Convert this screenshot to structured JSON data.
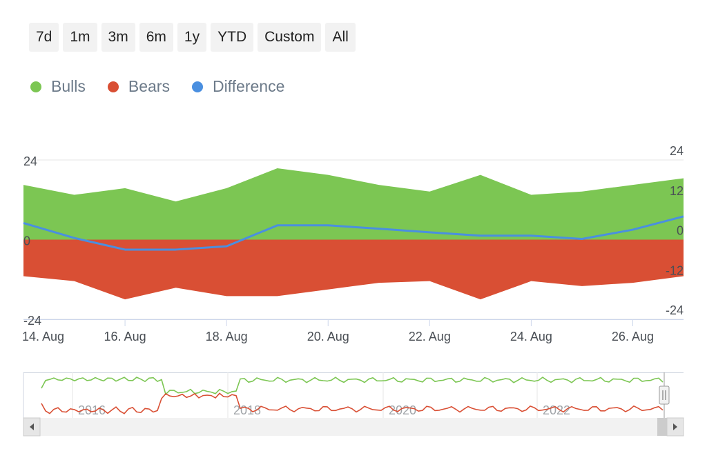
{
  "range_selector": {
    "buttons": [
      "7d",
      "1m",
      "3m",
      "6m",
      "1y",
      "YTD",
      "Custom",
      "All"
    ]
  },
  "legend": [
    {
      "label": "Bulls",
      "color": "#7cc653"
    },
    {
      "label": "Bears",
      "color": "#d94f34"
    },
    {
      "label": "Difference",
      "color": "#4a8fe0"
    }
  ],
  "chart_data": {
    "type": "area",
    "x": [
      "14. Aug",
      "15. Aug",
      "16. Aug",
      "17. Aug",
      "18. Aug",
      "19. Aug",
      "20. Aug",
      "21. Aug",
      "22. Aug",
      "23. Aug",
      "24. Aug",
      "25. Aug",
      "26. Aug",
      "27. Aug"
    ],
    "x_tick_labels": [
      "14. Aug",
      "16. Aug",
      "18. Aug",
      "20. Aug",
      "22. Aug",
      "24. Aug",
      "26. Aug"
    ],
    "series": [
      {
        "name": "Bulls",
        "type": "area",
        "color": "#7cc653",
        "values": [
          16.5,
          13.5,
          15.5,
          11.5,
          15.5,
          21.5,
          19.5,
          16.5,
          14.5,
          19.5,
          13.5,
          14.5,
          16.5,
          18.5
        ]
      },
      {
        "name": "Bears",
        "type": "area",
        "color": "#d94f34",
        "values": [
          -11,
          -12.5,
          -18,
          -14.5,
          -17,
          -17,
          -15,
          -13,
          -12.5,
          -18,
          -12.5,
          -14,
          -13,
          -11
        ]
      },
      {
        "name": "Difference",
        "type": "line",
        "color": "#4a8fe0",
        "values": [
          5,
          0.5,
          -3,
          -3,
          -2,
          4.3,
          4.3,
          3.3,
          2.2,
          1.2,
          1.2,
          0.2,
          3,
          7
        ]
      }
    ],
    "y_left": {
      "ticks": [
        24,
        0,
        -24
      ],
      "range": [
        -24,
        24
      ]
    },
    "y_right": {
      "ticks": [
        24,
        12,
        0,
        -12,
        -24
      ],
      "range": [
        -24,
        24
      ]
    },
    "grid": true,
    "legend_position": "top-left",
    "navigator": {
      "x_labels": [
        "2016",
        "2018",
        "2020",
        "2022"
      ],
      "series": [
        {
          "name": "Bulls",
          "color": "#7cc653"
        },
        {
          "name": "Bears",
          "color": "#d94f34"
        }
      ]
    }
  }
}
